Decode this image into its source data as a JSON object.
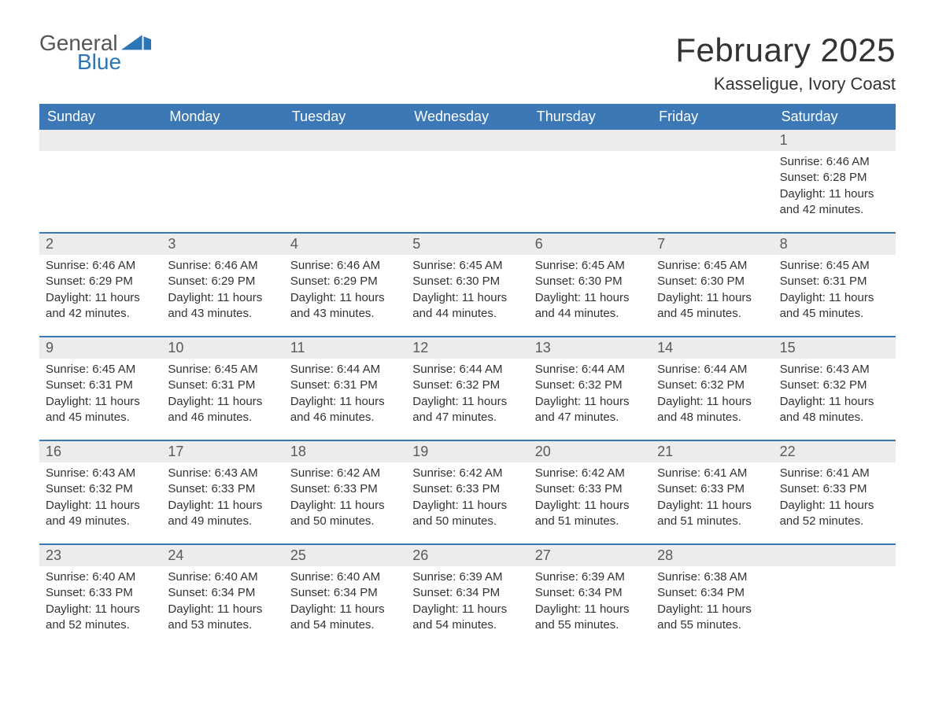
{
  "brand": {
    "word1": "General",
    "word2": "Blue",
    "color_general": "#555555",
    "color_blue": "#2e75b6",
    "logo_fill": "#2e75b6"
  },
  "header": {
    "title": "February 2025",
    "location": "Kasseligue, Ivory Coast"
  },
  "style": {
    "header_bg": "#3b78b5",
    "header_fg": "#ffffff",
    "strip_bg": "#ececec",
    "border_color": "#3b78b5",
    "body_fg": "#333333",
    "page_bg": "#ffffff",
    "title_fontsize": 42,
    "location_fontsize": 22,
    "weekday_fontsize": 18,
    "daynum_fontsize": 18,
    "body_fontsize": 15
  },
  "weekdays": [
    "Sunday",
    "Monday",
    "Tuesday",
    "Wednesday",
    "Thursday",
    "Friday",
    "Saturday"
  ],
  "weeks": [
    [
      null,
      null,
      null,
      null,
      null,
      null,
      {
        "n": "1",
        "sunrise": "Sunrise: 6:46 AM",
        "sunset": "Sunset: 6:28 PM",
        "day": "Daylight: 11 hours and 42 minutes."
      }
    ],
    [
      {
        "n": "2",
        "sunrise": "Sunrise: 6:46 AM",
        "sunset": "Sunset: 6:29 PM",
        "day": "Daylight: 11 hours and 42 minutes."
      },
      {
        "n": "3",
        "sunrise": "Sunrise: 6:46 AM",
        "sunset": "Sunset: 6:29 PM",
        "day": "Daylight: 11 hours and 43 minutes."
      },
      {
        "n": "4",
        "sunrise": "Sunrise: 6:46 AM",
        "sunset": "Sunset: 6:29 PM",
        "day": "Daylight: 11 hours and 43 minutes."
      },
      {
        "n": "5",
        "sunrise": "Sunrise: 6:45 AM",
        "sunset": "Sunset: 6:30 PM",
        "day": "Daylight: 11 hours and 44 minutes."
      },
      {
        "n": "6",
        "sunrise": "Sunrise: 6:45 AM",
        "sunset": "Sunset: 6:30 PM",
        "day": "Daylight: 11 hours and 44 minutes."
      },
      {
        "n": "7",
        "sunrise": "Sunrise: 6:45 AM",
        "sunset": "Sunset: 6:30 PM",
        "day": "Daylight: 11 hours and 45 minutes."
      },
      {
        "n": "8",
        "sunrise": "Sunrise: 6:45 AM",
        "sunset": "Sunset: 6:31 PM",
        "day": "Daylight: 11 hours and 45 minutes."
      }
    ],
    [
      {
        "n": "9",
        "sunrise": "Sunrise: 6:45 AM",
        "sunset": "Sunset: 6:31 PM",
        "day": "Daylight: 11 hours and 45 minutes."
      },
      {
        "n": "10",
        "sunrise": "Sunrise: 6:45 AM",
        "sunset": "Sunset: 6:31 PM",
        "day": "Daylight: 11 hours and 46 minutes."
      },
      {
        "n": "11",
        "sunrise": "Sunrise: 6:44 AM",
        "sunset": "Sunset: 6:31 PM",
        "day": "Daylight: 11 hours and 46 minutes."
      },
      {
        "n": "12",
        "sunrise": "Sunrise: 6:44 AM",
        "sunset": "Sunset: 6:32 PM",
        "day": "Daylight: 11 hours and 47 minutes."
      },
      {
        "n": "13",
        "sunrise": "Sunrise: 6:44 AM",
        "sunset": "Sunset: 6:32 PM",
        "day": "Daylight: 11 hours and 47 minutes."
      },
      {
        "n": "14",
        "sunrise": "Sunrise: 6:44 AM",
        "sunset": "Sunset: 6:32 PM",
        "day": "Daylight: 11 hours and 48 minutes."
      },
      {
        "n": "15",
        "sunrise": "Sunrise: 6:43 AM",
        "sunset": "Sunset: 6:32 PM",
        "day": "Daylight: 11 hours and 48 minutes."
      }
    ],
    [
      {
        "n": "16",
        "sunrise": "Sunrise: 6:43 AM",
        "sunset": "Sunset: 6:32 PM",
        "day": "Daylight: 11 hours and 49 minutes."
      },
      {
        "n": "17",
        "sunrise": "Sunrise: 6:43 AM",
        "sunset": "Sunset: 6:33 PM",
        "day": "Daylight: 11 hours and 49 minutes."
      },
      {
        "n": "18",
        "sunrise": "Sunrise: 6:42 AM",
        "sunset": "Sunset: 6:33 PM",
        "day": "Daylight: 11 hours and 50 minutes."
      },
      {
        "n": "19",
        "sunrise": "Sunrise: 6:42 AM",
        "sunset": "Sunset: 6:33 PM",
        "day": "Daylight: 11 hours and 50 minutes."
      },
      {
        "n": "20",
        "sunrise": "Sunrise: 6:42 AM",
        "sunset": "Sunset: 6:33 PM",
        "day": "Daylight: 11 hours and 51 minutes."
      },
      {
        "n": "21",
        "sunrise": "Sunrise: 6:41 AM",
        "sunset": "Sunset: 6:33 PM",
        "day": "Daylight: 11 hours and 51 minutes."
      },
      {
        "n": "22",
        "sunrise": "Sunrise: 6:41 AM",
        "sunset": "Sunset: 6:33 PM",
        "day": "Daylight: 11 hours and 52 minutes."
      }
    ],
    [
      {
        "n": "23",
        "sunrise": "Sunrise: 6:40 AM",
        "sunset": "Sunset: 6:33 PM",
        "day": "Daylight: 11 hours and 52 minutes."
      },
      {
        "n": "24",
        "sunrise": "Sunrise: 6:40 AM",
        "sunset": "Sunset: 6:34 PM",
        "day": "Daylight: 11 hours and 53 minutes."
      },
      {
        "n": "25",
        "sunrise": "Sunrise: 6:40 AM",
        "sunset": "Sunset: 6:34 PM",
        "day": "Daylight: 11 hours and 54 minutes."
      },
      {
        "n": "26",
        "sunrise": "Sunrise: 6:39 AM",
        "sunset": "Sunset: 6:34 PM",
        "day": "Daylight: 11 hours and 54 minutes."
      },
      {
        "n": "27",
        "sunrise": "Sunrise: 6:39 AM",
        "sunset": "Sunset: 6:34 PM",
        "day": "Daylight: 11 hours and 55 minutes."
      },
      {
        "n": "28",
        "sunrise": "Sunrise: 6:38 AM",
        "sunset": "Sunset: 6:34 PM",
        "day": "Daylight: 11 hours and 55 minutes."
      },
      null
    ]
  ]
}
